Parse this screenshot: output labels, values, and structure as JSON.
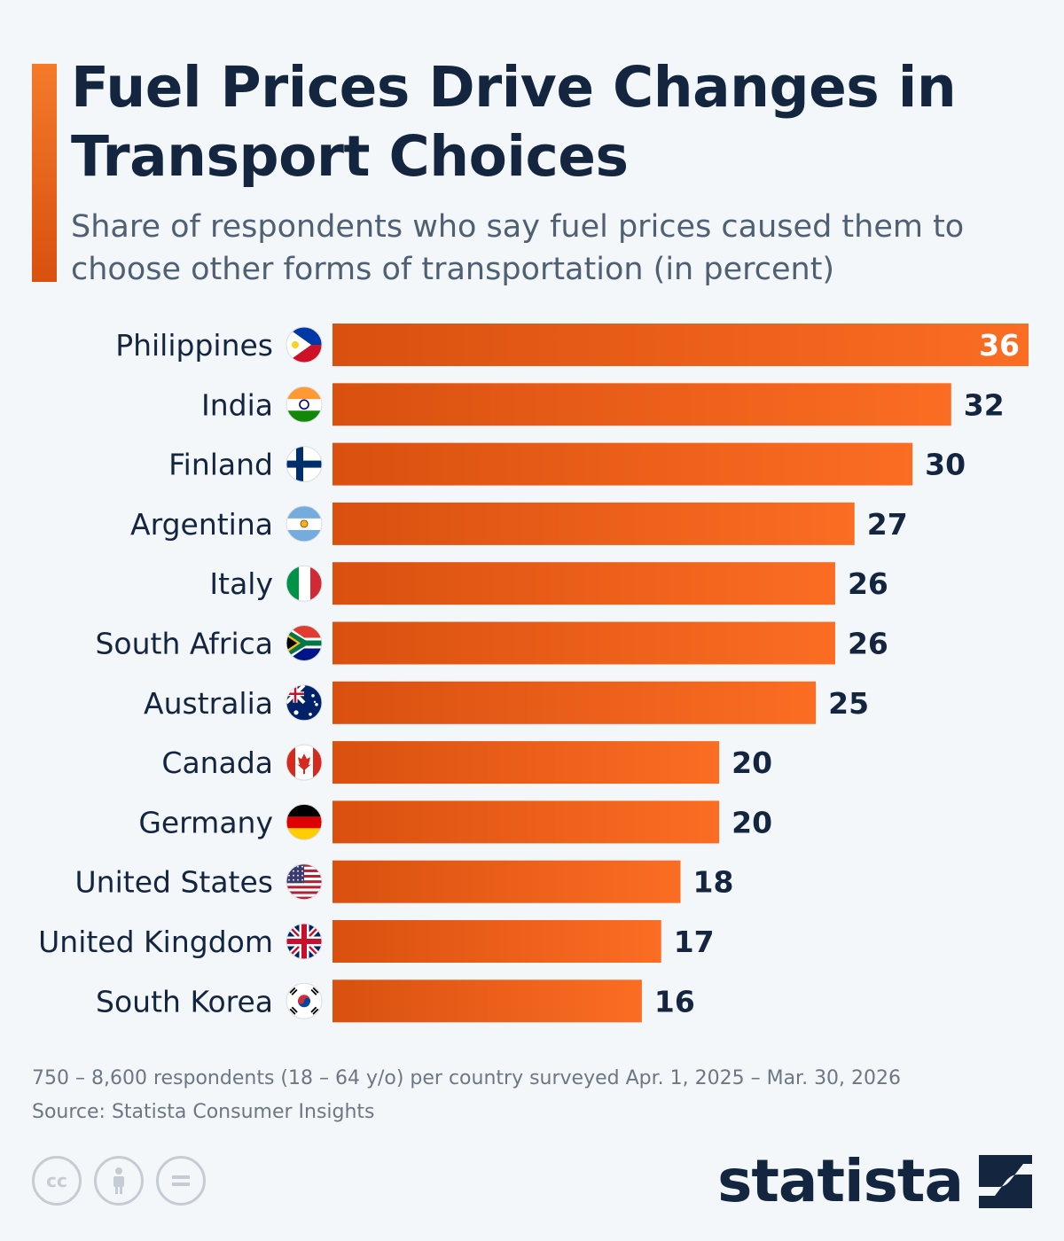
{
  "header": {
    "title": "Fuel Prices Drive Changes in Transport Choices",
    "subtitle": "Share of respondents who say fuel prices caused them to choose other forms of transportation (in percent)"
  },
  "colors": {
    "bar_start": "#d9500f",
    "bar_end": "#fb6d23",
    "title": "#13253f",
    "label": "#13253f",
    "value_inside": "#ffffff"
  },
  "chart_data": {
    "type": "bar",
    "orientation": "horizontal",
    "title": "Fuel Prices Drive Changes in Transport Choices",
    "subtitle": "Share of respondents who say fuel prices caused them to choose other forms of transportation (in percent)",
    "categories": [
      "Philippines",
      "India",
      "Finland",
      "Argentina",
      "Italy",
      "South Africa",
      "Australia",
      "Canada",
      "Germany",
      "United States",
      "United Kingdom",
      "South Korea"
    ],
    "values": [
      36,
      32,
      30,
      27,
      26,
      26,
      25,
      20,
      20,
      18,
      17,
      16
    ],
    "flags": [
      "philippines-flag-icon",
      "india-flag-icon",
      "finland-flag-icon",
      "argentina-flag-icon",
      "italy-flag-icon",
      "south-africa-flag-icon",
      "australia-flag-icon",
      "canada-flag-icon",
      "germany-flag-icon",
      "united-states-flag-icon",
      "united-kingdom-flag-icon",
      "south-korea-flag-icon"
    ],
    "xlim": [
      0,
      36
    ],
    "grid": false,
    "legend": "none"
  },
  "footer": {
    "note": "750 – 8,600 respondents (18 – 64 y/o) per country surveyed Apr. 1, 2025 – Mar. 30, 2026",
    "source": "Source: Statista Consumer Insights",
    "brand": "statista"
  },
  "license_icons": [
    "creative-commons-icon",
    "attribution-icon",
    "no-derivatives-icon"
  ]
}
